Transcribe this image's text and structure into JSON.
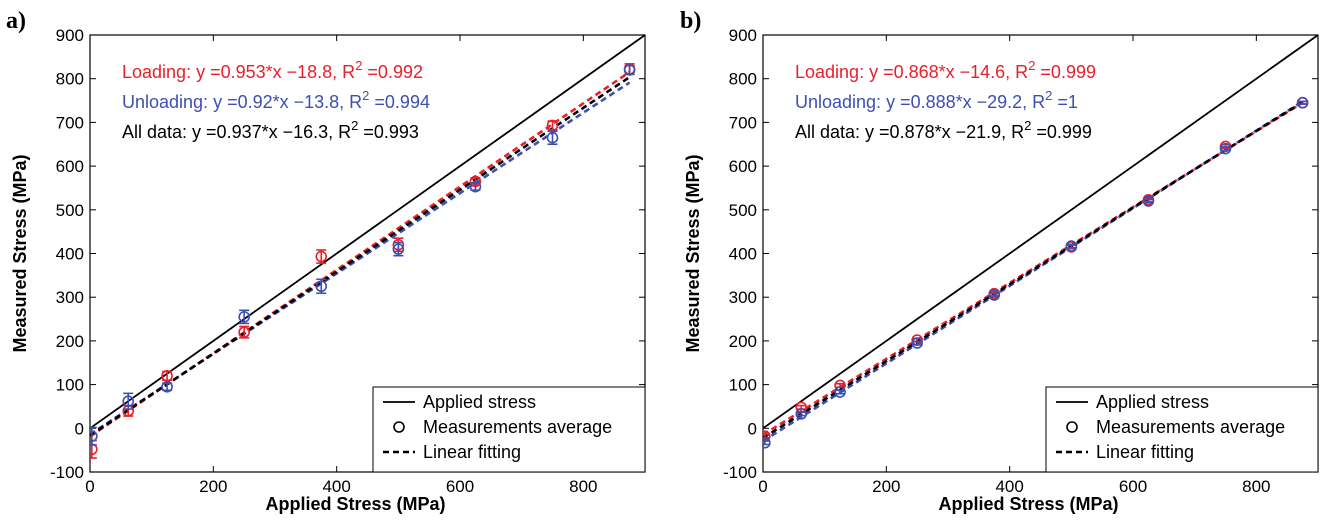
{
  "chart_data": [
    {
      "type": "scatter",
      "panel_label": "a)",
      "xlabel": "Applied Stress (MPa)",
      "ylabel": "Measured Stress (MPa)",
      "xlim": [
        0,
        900
      ],
      "ylim": [
        -100,
        900
      ],
      "x_ticks": [
        "0",
        "200",
        "400",
        "600",
        "800"
      ],
      "y_ticks": [
        "-100",
        "0",
        "100",
        "200",
        "300",
        "400",
        "500",
        "600",
        "700",
        "800",
        "900"
      ],
      "equations": [
        {
          "prefix": "Loading: y =0.953*x −18.8,  R",
          "sup": "2",
          "suffix": " =0.992",
          "color": "#e8202a"
        },
        {
          "prefix": "Unloading: y =0.92*x −13.8,  R",
          "sup": "2",
          "suffix": " =0.994",
          "color": "#3d4fb0"
        },
        {
          "prefix": "All data: y =0.937*x −16.3,  R",
          "sup": "2",
          "suffix": " =0.993",
          "color": "#000000"
        }
      ],
      "legend": {
        "position": "bottom-right",
        "entries": [
          "Applied stress",
          "Measurements average",
          "Linear fitting"
        ]
      },
      "reference_line": [
        [
          0,
          0
        ],
        [
          900,
          900
        ]
      ],
      "fits": [
        {
          "color": "#e8202a",
          "slope": 0.953,
          "intercept": -18.8
        },
        {
          "color": "#3d4fb0",
          "slope": 0.92,
          "intercept": -13.8
        },
        {
          "color": "#000000",
          "slope": 0.937,
          "intercept": -16.3
        }
      ],
      "fit_xrange": [
        0,
        875
      ],
      "series": [
        {
          "color": "#e8202a",
          "x": [
            3,
            62,
            125,
            250,
            375,
            500,
            625,
            750,
            875
          ],
          "y": [
            -48,
            40,
            120,
            220,
            393,
            420,
            565,
            693,
            822
          ],
          "err": [
            20,
            12,
            10,
            13,
            15,
            15,
            8,
            10,
            12
          ]
        },
        {
          "color": "#3d4fb0",
          "x": [
            3,
            62,
            125,
            250,
            375,
            500,
            625,
            750,
            875
          ],
          "y": [
            -18,
            62,
            95,
            255,
            325,
            410,
            553,
            665,
            820
          ],
          "err": [
            20,
            18,
            8,
            15,
            16,
            15,
            8,
            15,
            10
          ]
        }
      ]
    },
    {
      "type": "scatter",
      "panel_label": "b)",
      "xlabel": "Applied Stress (MPa)",
      "ylabel": "Measured Stress (MPa)",
      "xlim": [
        0,
        900
      ],
      "ylim": [
        -100,
        900
      ],
      "x_ticks": [
        "0",
        "200",
        "400",
        "600",
        "800"
      ],
      "y_ticks": [
        "-100",
        "0",
        "100",
        "200",
        "300",
        "400",
        "500",
        "600",
        "700",
        "800",
        "900"
      ],
      "equations": [
        {
          "prefix": "Loading: y =0.868*x −14.6,  R",
          "sup": "2",
          "suffix": " =0.999",
          "color": "#e8202a"
        },
        {
          "prefix": "Unloading: y =0.888*x −29.2,  R",
          "sup": "2",
          "suffix": " =1",
          "color": "#3d4fb0"
        },
        {
          "prefix": "All data: y =0.878*x −21.9,  R",
          "sup": "2",
          "suffix": " =0.999",
          "color": "#000000"
        }
      ],
      "legend": {
        "position": "bottom-right",
        "entries": [
          "Applied stress",
          "Measurements average",
          "Linear fitting"
        ]
      },
      "reference_line": [
        [
          0,
          0
        ],
        [
          900,
          900
        ]
      ],
      "fits": [
        {
          "color": "#e8202a",
          "slope": 0.868,
          "intercept": -14.6
        },
        {
          "color": "#3d4fb0",
          "slope": 0.888,
          "intercept": -29.2
        },
        {
          "color": "#000000",
          "slope": 0.878,
          "intercept": -21.9
        }
      ],
      "fit_xrange": [
        0,
        875
      ],
      "series": [
        {
          "color": "#e8202a",
          "x": [
            3,
            62,
            125,
            250,
            375,
            500,
            625,
            750,
            875
          ],
          "y": [
            -18,
            48,
            98,
            202,
            308,
            415,
            523,
            645,
            745
          ],
          "err": [
            4,
            4,
            4,
            4,
            4,
            4,
            4,
            4,
            3
          ]
        },
        {
          "color": "#3d4fb0",
          "x": [
            3,
            62,
            125,
            250,
            375,
            500,
            625,
            750,
            875
          ],
          "y": [
            -33,
            33,
            83,
            195,
            305,
            417,
            520,
            640,
            745
          ],
          "err": [
            4,
            4,
            4,
            4,
            4,
            4,
            4,
            4,
            3
          ]
        }
      ]
    }
  ]
}
